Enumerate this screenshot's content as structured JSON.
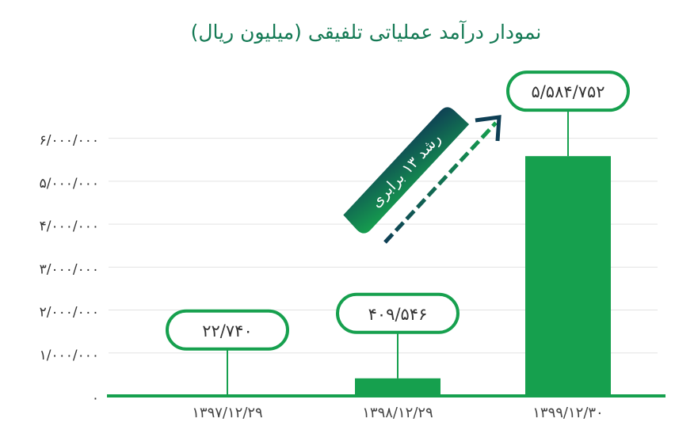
{
  "chart_data": {
    "type": "bar",
    "title": "نمودار درآمد عملیاتی تلفیقی (میلیون ریال)",
    "annotation": "رشد ۱۳ برابری",
    "categories": [
      "۱۳۹۷/۱۲/۲۹",
      "۱۳۹۸/۱۲/۲۹",
      "۱۳۹۹/۱۲/۳۰"
    ],
    "values": [
      22740,
      409546,
      5584752
    ],
    "value_labels": [
      "۲۲/۷۴۰",
      "۴۰۹/۵۴۶",
      "۵/۵۸۴/۷۵۲"
    ],
    "color": "#16a04e",
    "ylim": [
      0,
      9000000
    ],
    "yticks": [
      {
        "value": 0,
        "label": "۰"
      },
      {
        "value": 1000000,
        "label": "۱/۰۰۰/۰۰۰"
      },
      {
        "value": 2000000,
        "label": "۲/۰۰۰/۰۰۰"
      },
      {
        "value": 3000000,
        "label": "۳/۰۰۰/۰۰۰"
      },
      {
        "value": 4000000,
        "label": "۴/۰۰۰/۰۰۰"
      },
      {
        "value": 5000000,
        "label": "۵/۰۰۰/۰۰۰"
      },
      {
        "value": 6000000,
        "label": "۶/۰۰۰/۰۰۰"
      }
    ],
    "grid": true
  }
}
